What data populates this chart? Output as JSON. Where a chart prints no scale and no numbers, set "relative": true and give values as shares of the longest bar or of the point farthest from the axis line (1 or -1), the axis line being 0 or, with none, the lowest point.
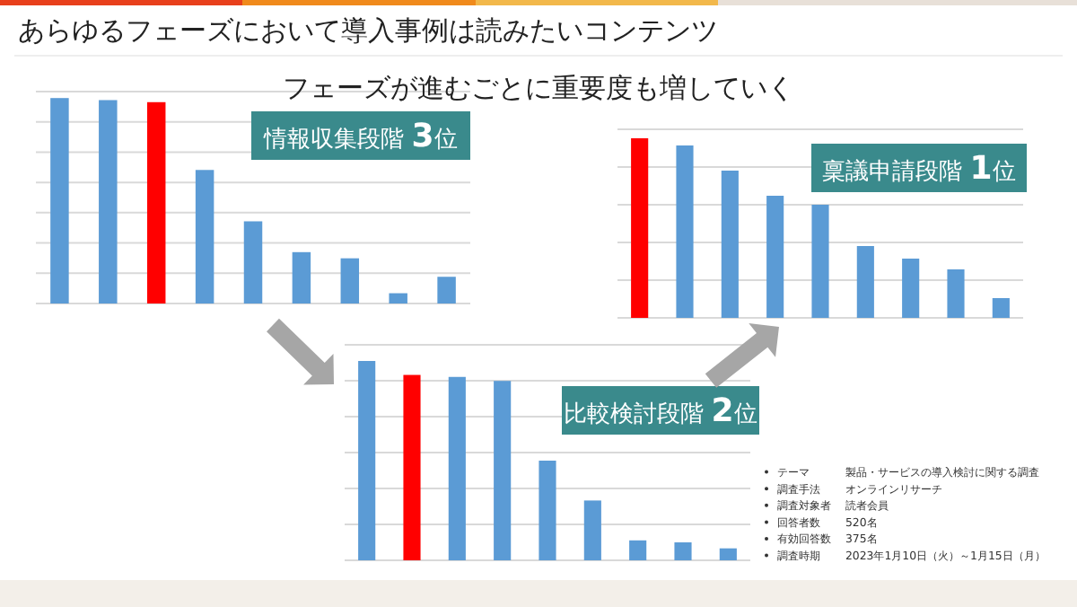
{
  "chart_data": [
    {
      "type": "bar",
      "relative": true,
      "grid": true,
      "title": "情報収集段階 3位",
      "categories": [
        null,
        null,
        null,
        null,
        null,
        null,
        null,
        null,
        null
      ],
      "values": [
        1,
        0.99,
        0.98,
        0.65,
        0.4,
        0.25,
        0.22,
        0.05,
        0.13
      ],
      "colors": [
        "#5b9bd5",
        "#5b9bd5",
        "#ff0000",
        "#5b9bd5",
        "#5b9bd5",
        "#5b9bd5",
        "#5b9bd5",
        "#5b9bd5",
        "#5b9bd5"
      ],
      "annotations": [
        "あらゆるフェーズにおいて導入事例は読みたいコンテンツ",
        "フェーズが進むごとに重要度も増していく"
      ]
    },
    {
      "type": "bar",
      "relative": true,
      "grid": true,
      "title": "稟議申請段階 1位",
      "categories": [
        null,
        null,
        null,
        null,
        null,
        null,
        null,
        null,
        null
      ],
      "values": [
        1,
        0.96,
        0.82,
        0.68,
        0.63,
        0.4,
        0.33,
        0.27,
        0.11
      ],
      "colors": [
        "#ff0000",
        "#5b9bd5",
        "#5b9bd5",
        "#5b9bd5",
        "#5b9bd5",
        "#5b9bd5",
        "#5b9bd5",
        "#5b9bd5",
        "#5b9bd5"
      ]
    },
    {
      "type": "bar",
      "relative": true,
      "grid": true,
      "title": "比較検討段階 2位",
      "categories": [
        null,
        null,
        null,
        null,
        null,
        null,
        null,
        null,
        null
      ],
      "values": [
        1,
        0.93,
        0.92,
        0.9,
        0.5,
        0.3,
        0.1,
        0.09,
        0.06
      ],
      "colors": [
        "#5b9bd5",
        "#ff0000",
        "#5b9bd5",
        "#5b9bd5",
        "#5b9bd5",
        "#5b9bd5",
        "#5b9bd5",
        "#5b9bd5",
        "#5b9bd5"
      ],
      "annotations": [
        "テーマ",
        "製品・サービスの導入検討に関する調査",
        "調査手法",
        "オンラインリサーチ",
        "調査対象者",
        "読者会員",
        "回答者数",
        "520名",
        "有効回答数",
        "375名",
        "調査時期",
        "2023年1月10日（火）～1月15日（月）"
      ]
    }
  ]
}
